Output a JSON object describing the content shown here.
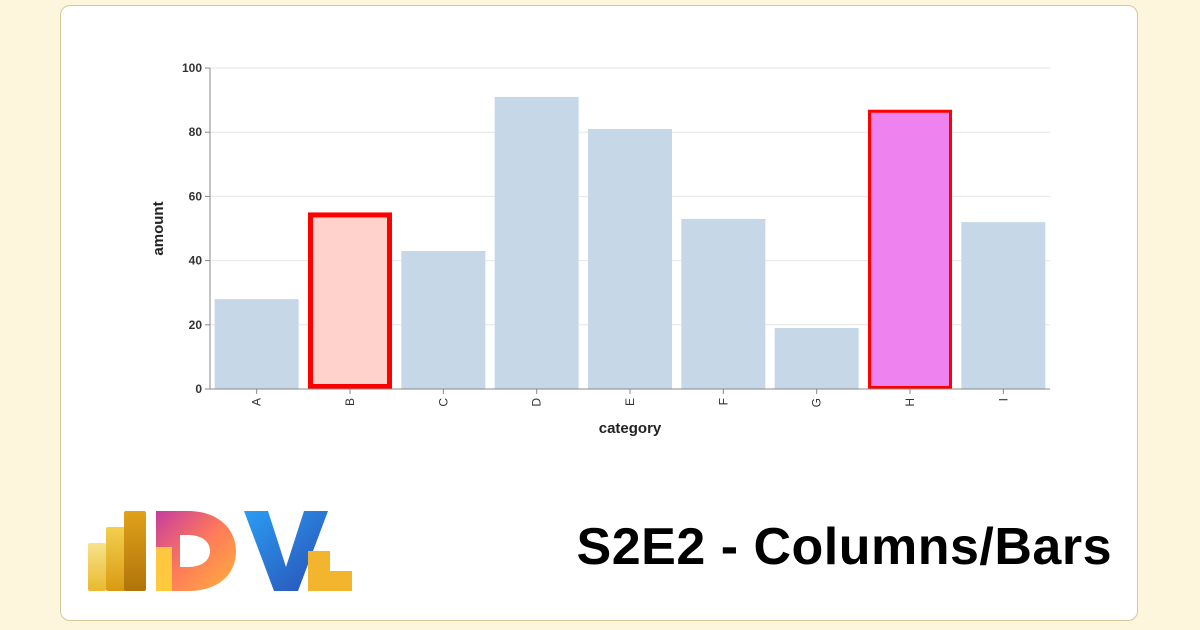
{
  "headline": "S2E2 - Columns/Bars",
  "logo_text": "DVL",
  "colors": {
    "page_bg": "#fdf6dc",
    "card_bg": "#ffffff",
    "bar_default": "#c6d8e8",
    "bar_b_fill": "#ffd3cb",
    "bar_h_fill": "#ee82ee",
    "highlight_stroke": "#ff0000",
    "grid": "#e6e6e6",
    "axis": "#888888"
  },
  "chart_data": {
    "type": "bar",
    "xlabel": "category",
    "ylabel": "amount",
    "ylim": [
      0,
      100
    ],
    "yticks": [
      0,
      20,
      40,
      60,
      80,
      100
    ],
    "grid": true,
    "categories": [
      "A",
      "B",
      "C",
      "D",
      "E",
      "F",
      "G",
      "H",
      "I"
    ],
    "values": [
      28,
      55,
      43,
      91,
      81,
      53,
      19,
      87,
      52
    ],
    "highlighted": [
      "B",
      "H"
    ]
  }
}
